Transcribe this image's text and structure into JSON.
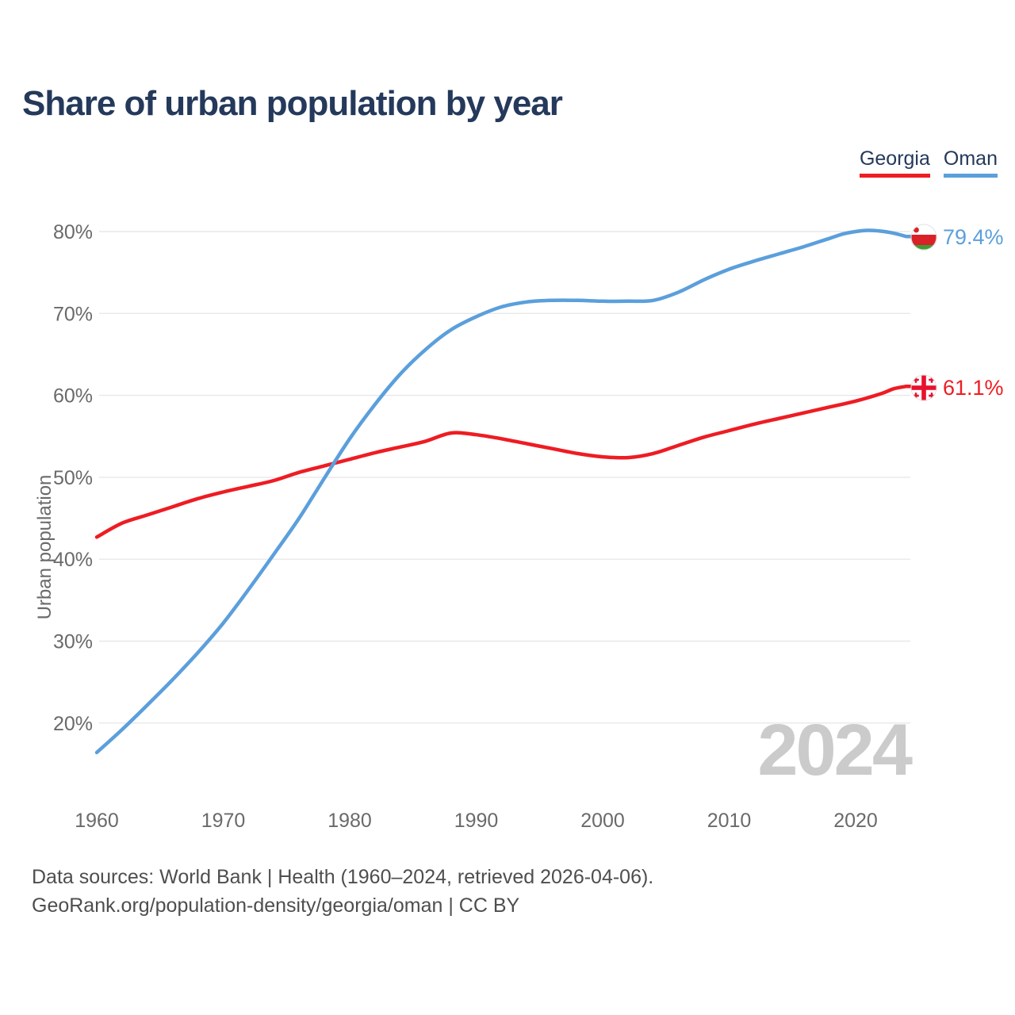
{
  "header": {
    "title": "Share of urban population by year"
  },
  "legend": {
    "items": [
      {
        "label": "Georgia",
        "color": "#ee1c23"
      },
      {
        "label": "Oman",
        "color": "#5b9fdc"
      }
    ]
  },
  "chart_data": {
    "type": "line",
    "title": "Share of urban population by year",
    "xlabel": "",
    "ylabel": "Urban population",
    "xlim": [
      1960,
      2024
    ],
    "ylim": [
      14,
      84
    ],
    "grid": "horizontal",
    "legend_position": "top-right",
    "watermark": "2024",
    "x_ticks": [
      1960,
      1970,
      1980,
      1990,
      2000,
      2010,
      2020
    ],
    "y_ticks": [
      20,
      30,
      40,
      50,
      60,
      70,
      80
    ],
    "y_tick_labels": [
      "20%",
      "30%",
      "40%",
      "50%",
      "60%",
      "70%",
      "80%"
    ],
    "series": [
      {
        "name": "Georgia",
        "color": "#ee1c23",
        "end_label": "61.1%",
        "flag": "georgia",
        "x": [
          1960,
          1962,
          1964,
          1966,
          1968,
          1970,
          1972,
          1974,
          1976,
          1978,
          1980,
          1982,
          1984,
          1986,
          1988,
          1990,
          1992,
          1994,
          1996,
          1998,
          2000,
          2002,
          2004,
          2006,
          2008,
          2010,
          2012,
          2014,
          2016,
          2018,
          2020,
          2022,
          2023,
          2024
        ],
        "values": [
          42.7,
          44.4,
          45.4,
          46.4,
          47.4,
          48.2,
          48.9,
          49.6,
          50.6,
          51.4,
          52.2,
          53.0,
          53.7,
          54.4,
          55.4,
          55.2,
          54.7,
          54.1,
          53.5,
          52.9,
          52.5,
          52.4,
          52.9,
          53.9,
          54.9,
          55.7,
          56.5,
          57.2,
          57.9,
          58.6,
          59.3,
          60.2,
          60.8,
          61.1
        ]
      },
      {
        "name": "Oman",
        "color": "#5b9fdc",
        "end_label": "79.4%",
        "flag": "oman",
        "x": [
          1960,
          1962,
          1964,
          1966,
          1968,
          1970,
          1972,
          1974,
          1976,
          1978,
          1980,
          1982,
          1984,
          1986,
          1988,
          1990,
          1992,
          1994,
          1996,
          1998,
          2000,
          2002,
          2004,
          2006,
          2008,
          2010,
          2012,
          2014,
          2016,
          2018,
          2019,
          2020,
          2021,
          2022,
          2023,
          2024
        ],
        "values": [
          16.4,
          19.2,
          22.2,
          25.3,
          28.6,
          32.2,
          36.3,
          40.6,
          45.0,
          49.9,
          54.7,
          58.9,
          62.6,
          65.6,
          68.0,
          69.6,
          70.8,
          71.4,
          71.6,
          71.6,
          71.5,
          71.5,
          71.6,
          72.6,
          74.1,
          75.4,
          76.4,
          77.3,
          78.2,
          79.2,
          79.7,
          80.0,
          80.15,
          80.05,
          79.8,
          79.4
        ]
      }
    ]
  },
  "footer": {
    "lines": [
      "Data sources: World Bank | Health (1960–2024, retrieved 2026-04-06).",
      "GeoRank.org/population-density/georgia/oman | CC BY"
    ]
  }
}
